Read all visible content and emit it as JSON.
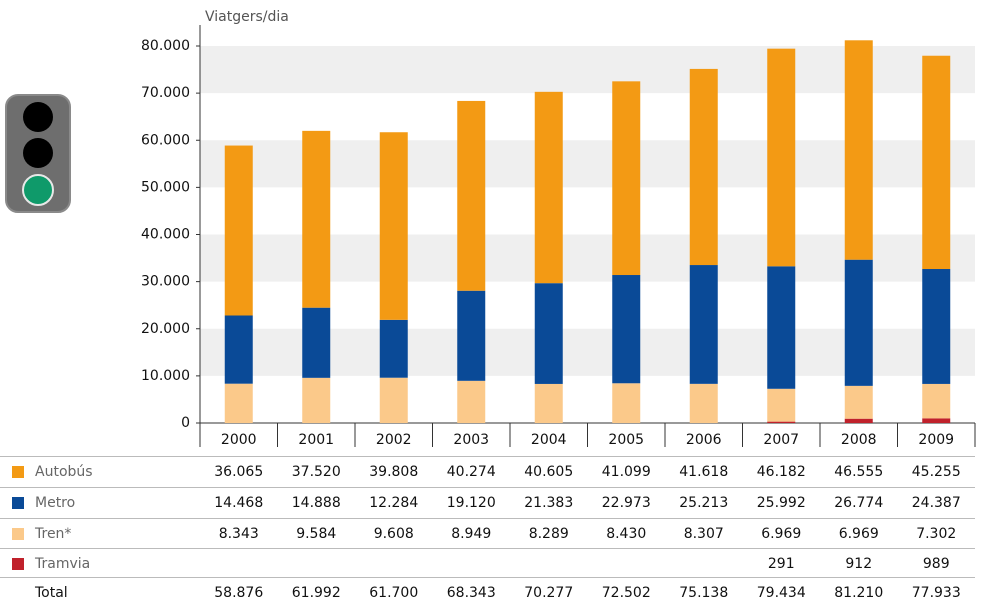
{
  "chart_data": {
    "type": "stacked_bar",
    "y_axis_label": "Viatgers/dia",
    "categories": [
      "2000",
      "2001",
      "2002",
      "2003",
      "2004",
      "2005",
      "2006",
      "2007",
      "2008",
      "2009"
    ],
    "series": [
      {
        "name": "Autobús",
        "color": "#f39a14",
        "values": [
          36065,
          37520,
          39808,
          40274,
          40605,
          41099,
          41618,
          46182,
          46555,
          45255
        ],
        "value_labels": [
          "36.065",
          "37.520",
          "39.808",
          "40.274",
          "40.605",
          "41.099",
          "41.618",
          "46.182",
          "46.555",
          "45.255"
        ]
      },
      {
        "name": "Metro",
        "color": "#0a4a97",
        "values": [
          14468,
          14888,
          12284,
          19120,
          21383,
          22973,
          25213,
          25992,
          26774,
          24387
        ],
        "value_labels": [
          "14.468",
          "14.888",
          "12.284",
          "19.120",
          "21.383",
          "22.973",
          "25.213",
          "25.992",
          "26.774",
          "24.387"
        ]
      },
      {
        "name": "Tren*",
        "color": "#fbc98a",
        "values": [
          8343,
          9584,
          9608,
          8949,
          8289,
          8430,
          8307,
          6969,
          6969,
          7302
        ],
        "value_labels": [
          "8.343",
          "9.584",
          "9.608",
          "8.949",
          "8.289",
          "8.430",
          "8.307",
          "6.969",
          "6.969",
          "7.302"
        ]
      },
      {
        "name": "Tramvia",
        "color": "#c0212b",
        "values": [
          null,
          null,
          null,
          null,
          null,
          null,
          null,
          291,
          912,
          989
        ],
        "value_labels": [
          null,
          null,
          null,
          null,
          null,
          null,
          null,
          "291",
          "912",
          "989"
        ]
      }
    ],
    "total": {
      "name": "Total",
      "values": [
        58876,
        61992,
        61700,
        68343,
        70277,
        72502,
        75138,
        79434,
        81210,
        77933
      ],
      "value_labels": [
        "58.876",
        "61.992",
        "61.700",
        "68.343",
        "70.277",
        "72.502",
        "75.138",
        "79.434",
        "81.210",
        "77.933"
      ]
    },
    "ylim": [
      0,
      80000
    ],
    "yticks": [
      0,
      {
        "value": 10000,
        "label": "10.000"
      },
      {
        "value": 20000,
        "label": "20.000"
      },
      {
        "value": 30000,
        "label": "30.000"
      },
      {
        "value": 40000,
        "label": "40.000"
      },
      {
        "value": 50000,
        "label": "50.000"
      },
      {
        "value": 60000,
        "label": "60.000"
      },
      {
        "value": 70000,
        "label": "70.000"
      },
      {
        "value": 80000,
        "label": "80.000"
      }
    ],
    "grid": "bands"
  }
}
